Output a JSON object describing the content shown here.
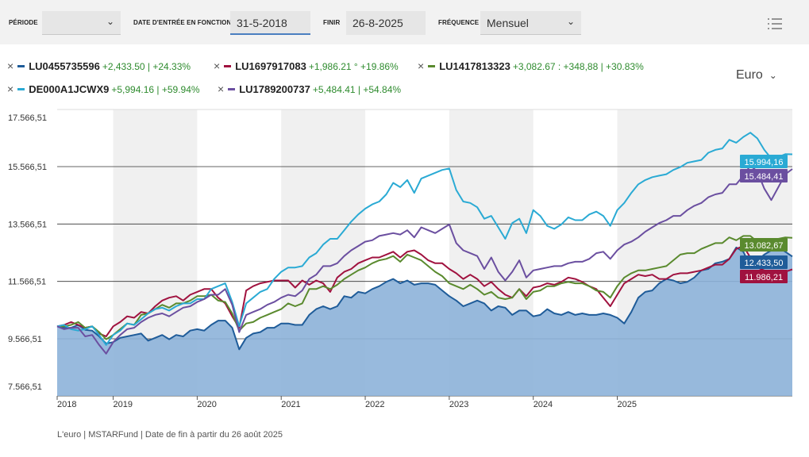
{
  "toolbar": {
    "period_label": "PÉRIODE",
    "period_value": "",
    "start_label": "DATE D'ENTRÉE EN FONCTION",
    "start_value": "31-5-2018",
    "end_label": "FINIR",
    "end_value": "26-8-2025",
    "freq_label": "FRÉQUENCE",
    "freq_value": "Mensuel",
    "menu_icon": "list-menu-icon"
  },
  "currency": "Euro",
  "footer": "L'euro | MSTARFund | Date de fin à partir du 26 août 2025",
  "legend": [
    {
      "id": "LU0455735596",
      "stats": "+2,433.50 | +24.33%",
      "color": "#1f5c99"
    },
    {
      "id": "LU1697917083",
      "stats": "+1,986.21 ° +19.86%",
      "color": "#a0123f"
    },
    {
      "id": "LU1417813323",
      "stats": "+3,082.67 : +348,88 | +30.83%",
      "color": "#5a8a2e"
    },
    {
      "id": "DE000A1JCWX9",
      "stats": "+5,994.16 | +59.94%",
      "color": "#2aaad4"
    },
    {
      "id": "LU1789200737",
      "stats": "+5,484.41 | +54.84%",
      "color": "#6b4fa0"
    }
  ],
  "chart_data": {
    "type": "line",
    "x_start": "2018-05",
    "x_end": "2025-08",
    "x_ticks": [
      "2018",
      "2019",
      "2020",
      "2021",
      "2022",
      "2023",
      "2024",
      "2025"
    ],
    "y_ticks": [
      "7.566,51",
      "9.566,51",
      "11.566,51",
      "13.566,51",
      "15.566,51",
      "17.566,51"
    ],
    "ylim": [
      7566.51,
      17566.51
    ],
    "area_series": "LU0455735596",
    "series": [
      {
        "name": "LU0455735596",
        "color": "#1f5c99",
        "end_label": "12.433,50",
        "values": [
          10000,
          9950,
          9950,
          10050,
          9880,
          9850,
          9650,
          9400,
          9450,
          9600,
          9650,
          9700,
          9750,
          9500,
          9600,
          9700,
          9550,
          9700,
          9650,
          9850,
          9900,
          9850,
          10050,
          10200,
          10200,
          9950,
          9200,
          9600,
          9750,
          9800,
          9950,
          9950,
          10100,
          10100,
          10050,
          10050,
          10400,
          10600,
          10700,
          10600,
          10700,
          11050,
          11000,
          11200,
          11150,
          11300,
          11400,
          11550,
          11650,
          11500,
          11600,
          11450,
          11500,
          11500,
          11450,
          11250,
          11050,
          10900,
          10700,
          10800,
          10900,
          10800,
          10550,
          10700,
          10650,
          10400,
          10550,
          10550,
          10350,
          10400,
          10600,
          10450,
          10400,
          10500,
          10400,
          10450,
          10400,
          10400,
          10450,
          10400,
          10300,
          10100,
          10500,
          11000,
          11200,
          11250,
          11500,
          11650,
          11600,
          11500,
          11550,
          11700,
          11950,
          12000,
          12200,
          12250,
          12350,
          12750,
          12600,
          12100,
          12300,
          12500,
          12650,
          12750,
          12600,
          12433.5
        ]
      },
      {
        "name": "LU1697917083",
        "color": "#a0123f",
        "end_label": "11.986,21",
        "values": [
          10000,
          10050,
          10150,
          10050,
          9950,
          10000,
          9750,
          9650,
          10000,
          10150,
          10350,
          10300,
          10500,
          10450,
          10700,
          10900,
          11000,
          11050,
          10900,
          11100,
          11200,
          11300,
          11300,
          11000,
          10800,
          10350,
          9950,
          11250,
          11400,
          11500,
          11550,
          11600,
          11600,
          11600,
          11350,
          11600,
          11450,
          11600,
          11500,
          11200,
          11700,
          11900,
          12000,
          12200,
          12300,
          12400,
          12400,
          12500,
          12600,
          12400,
          12600,
          12650,
          12500,
          12300,
          12200,
          12200,
          12000,
          11850,
          11650,
          11800,
          11650,
          11400,
          11550,
          11300,
          11100,
          11000,
          11300,
          11050,
          11350,
          11400,
          11500,
          11450,
          11550,
          11700,
          11650,
          11550,
          11400,
          11300,
          11000,
          10700,
          11100,
          11500,
          11650,
          11800,
          11750,
          11800,
          11650,
          11650,
          11800,
          11850,
          11850,
          11900,
          11950,
          12050,
          12150,
          12150,
          12350,
          12700,
          12800,
          12400,
          12050,
          11950,
          11900,
          11850,
          11900,
          11986.21
        ]
      },
      {
        "name": "LU1417813323",
        "color": "#5a8a2e",
        "end_label": "13.082,67",
        "values": [
          10000,
          10000,
          10050,
          10150,
          9950,
          10000,
          9800,
          9550,
          9700,
          9900,
          10100,
          10050,
          10400,
          10450,
          10600,
          10750,
          10650,
          10800,
          10800,
          10900,
          11050,
          11050,
          11100,
          10900,
          10850,
          10450,
          9850,
          10100,
          10150,
          10300,
          10400,
          10500,
          10600,
          10800,
          10700,
          10800,
          11300,
          11300,
          11400,
          11300,
          11450,
          11650,
          11800,
          11950,
          12050,
          12200,
          12300,
          12350,
          12450,
          12250,
          12500,
          12400,
          12300,
          12100,
          11900,
          11750,
          11500,
          11400,
          11300,
          11450,
          11300,
          11100,
          11200,
          11000,
          10950,
          11000,
          11300,
          10950,
          11200,
          11250,
          11400,
          11400,
          11500,
          11550,
          11500,
          11500,
          11400,
          11250,
          11200,
          11000,
          11400,
          11700,
          11850,
          11950,
          11950,
          12000,
          12050,
          12100,
          12300,
          12500,
          12550,
          12550,
          12700,
          12800,
          12900,
          12900,
          13100,
          13000,
          13150,
          13150,
          12950,
          13000,
          13000,
          13050,
          13100,
          13082.67
        ]
      },
      {
        "name": "DE000A1JCWX9",
        "color": "#2aaad4",
        "end_label": "15.994,16",
        "values": [
          10000,
          10050,
          9900,
          9850,
          9900,
          10000,
          9700,
          9350,
          9700,
          9850,
          10100,
          10050,
          10250,
          10450,
          10600,
          10650,
          10550,
          10700,
          10800,
          10800,
          10950,
          10950,
          11300,
          11400,
          11500,
          10850,
          10000,
          10800,
          11000,
          11200,
          11300,
          11650,
          11900,
          12050,
          12050,
          12100,
          12400,
          12550,
          12850,
          13050,
          13050,
          13350,
          13650,
          13900,
          14100,
          14250,
          14350,
          14600,
          15000,
          14850,
          15100,
          14650,
          15150,
          15250,
          15350,
          15450,
          15500,
          14750,
          14350,
          14300,
          14150,
          13750,
          13850,
          13450,
          13050,
          13600,
          13750,
          13250,
          14050,
          13850,
          13500,
          13400,
          13550,
          13800,
          13700,
          13700,
          13900,
          14000,
          13850,
          13500,
          14050,
          14300,
          14650,
          14950,
          15100,
          15200,
          15250,
          15300,
          15450,
          15550,
          15700,
          15750,
          15800,
          16050,
          16150,
          16200,
          16500,
          16400,
          16600,
          16750,
          16550,
          16150,
          15850,
          15900,
          16000,
          15994.16
        ]
      },
      {
        "name": "LU1789200737",
        "color": "#6b4fa0",
        "end_label": "15.484,41",
        "values": [
          10000,
          9900,
          9950,
          9950,
          9650,
          9700,
          9350,
          9050,
          9450,
          9700,
          9900,
          9950,
          10150,
          10300,
          10400,
          10450,
          10350,
          10500,
          10650,
          10700,
          10850,
          10950,
          11100,
          11100,
          11300,
          10750,
          9800,
          10400,
          10500,
          10600,
          10750,
          10850,
          11000,
          11100,
          11050,
          11250,
          11650,
          11800,
          12100,
          12100,
          12200,
          12450,
          12650,
          12800,
          12950,
          13000,
          13150,
          13200,
          13250,
          13200,
          13350,
          13100,
          13450,
          13350,
          13250,
          13400,
          13550,
          12900,
          12650,
          12550,
          12450,
          12000,
          12400,
          11900,
          11600,
          11900,
          12300,
          11700,
          11950,
          12000,
          12050,
          12100,
          12100,
          12200,
          12250,
          12250,
          12350,
          12550,
          12600,
          12350,
          12650,
          12850,
          12950,
          13100,
          13300,
          13450,
          13600,
          13700,
          13850,
          13850,
          14050,
          14200,
          14300,
          14500,
          14600,
          14650,
          14950,
          14950,
          15250,
          15600,
          15400,
          14800,
          14400,
          14850,
          15300,
          15484.41
        ]
      }
    ]
  }
}
